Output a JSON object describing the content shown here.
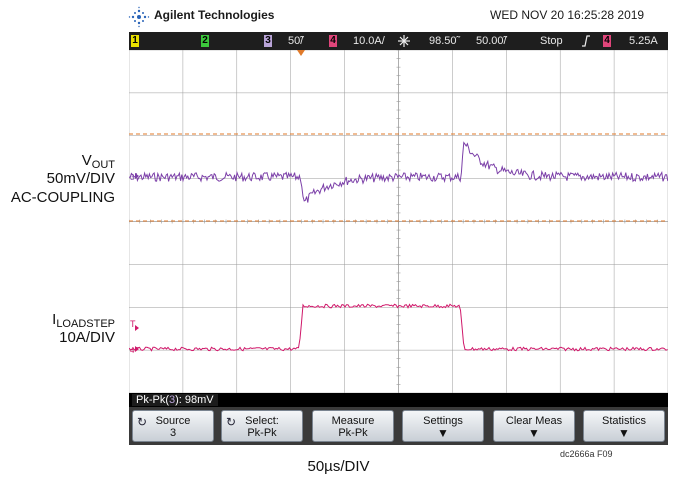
{
  "header": {
    "brand": "Agilent Technologies",
    "datetime": "WED NOV 20 16:25:28 2019"
  },
  "status": {
    "ch1": "1",
    "ch2": "2",
    "ch3": "3",
    "ch3_scale": "50̃/",
    "ch4": "4",
    "ch4_scale": "10.0A/",
    "trig_icon": "☲",
    "timebase": "98.50̃",
    "delay": "50.00̃/",
    "run_state": "Stop",
    "edge_icon": "ʄ",
    "trig_ch": "4",
    "trig_level": "5.25A"
  },
  "measurement": {
    "label_prefix": "Pk-Pk(",
    "label_ch": "3",
    "label_suffix": "): 98mV"
  },
  "softkeys": [
    {
      "line1": "Source",
      "line2": "3",
      "icon": "↻"
    },
    {
      "line1": "Select:",
      "line2": "Pk-Pk",
      "icon": "↻"
    },
    {
      "line1": "Measure",
      "line2": "Pk-Pk",
      "icon": ""
    },
    {
      "line1": "Settings",
      "line2": "▼",
      "icon": ""
    },
    {
      "line1": "Clear Meas",
      "line2": "▼",
      "icon": ""
    },
    {
      "line1": "Statistics",
      "line2": "▼",
      "icon": ""
    }
  ],
  "labels": {
    "vout_main": "V",
    "vout_sub": "OUT",
    "vout_scale": "50mV/DIV",
    "vout_coupling": "AC-COUPLING",
    "iload_main": "I",
    "iload_sub": "LOADSTEP",
    "iload_scale": "10A/DIV",
    "timediv": "50µs/DIV",
    "figure_id": "dc2666a F09"
  },
  "colors": {
    "ch3_trace": "#7b3fa8",
    "ch4_trace": "#d0186a",
    "grid": "#9a9a9a",
    "cursor": "#e07a2a"
  },
  "chart_data": {
    "type": "line",
    "x_divisions": 10,
    "y_divisions": 8,
    "series": [
      {
        "name": "VOUT",
        "channel": "3"
      },
      {
        "name": "ILOADSTEP",
        "channel": "4"
      }
    ]
  }
}
